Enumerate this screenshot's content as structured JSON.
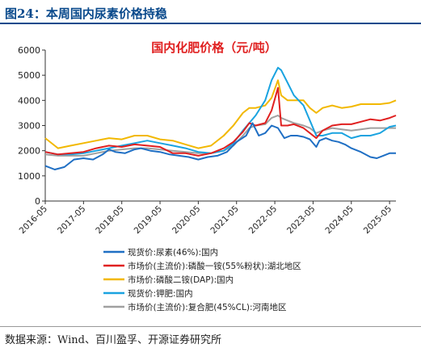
{
  "figure": {
    "title": "图24：本周国内尿素价格持稳",
    "source": "数据来源：Wind、百川盈孚、开源证券研究所"
  },
  "colors": {
    "header": "#0a4a8c"
  },
  "chart_data": {
    "type": "line",
    "title": "国内化肥价格（元/吨）",
    "title_color": "#e02020",
    "ylim": [
      0,
      6000
    ],
    "yticks": [
      0,
      1000,
      2000,
      3000,
      4000,
      5000,
      6000
    ],
    "xlim": [
      "2016-05",
      "2025-07"
    ],
    "xtick_labels": [
      "2016-05",
      "2017-05",
      "2018-05",
      "2019-05",
      "2020-05",
      "2021-05",
      "2022-05",
      "2023-05",
      "2024-05",
      "2025-05"
    ],
    "grid": false,
    "legend_position": "bottom",
    "series": [
      {
        "name": "现货价:尿素(46%):国内",
        "color": "#1f6fc4",
        "points": [
          [
            "2016-05",
            1400
          ],
          [
            "2016-08",
            1250
          ],
          [
            "2016-11",
            1350
          ],
          [
            "2017-02",
            1650
          ],
          [
            "2017-05",
            1700
          ],
          [
            "2017-08",
            1650
          ],
          [
            "2017-11",
            1850
          ],
          [
            "2018-01",
            2050
          ],
          [
            "2018-03",
            1950
          ],
          [
            "2018-06",
            1900
          ],
          [
            "2018-09",
            2050
          ],
          [
            "2018-11",
            2100
          ],
          [
            "2019-02",
            2000
          ],
          [
            "2019-05",
            1950
          ],
          [
            "2019-08",
            1850
          ],
          [
            "2019-11",
            1800
          ],
          [
            "2020-02",
            1750
          ],
          [
            "2020-05",
            1650
          ],
          [
            "2020-08",
            1750
          ],
          [
            "2020-11",
            1800
          ],
          [
            "2021-02",
            1950
          ],
          [
            "2021-05",
            2350
          ],
          [
            "2021-08",
            2600
          ],
          [
            "2021-10",
            3100
          ],
          [
            "2021-12",
            2600
          ],
          [
            "2022-02",
            2700
          ],
          [
            "2022-04",
            3000
          ],
          [
            "2022-06",
            2900
          ],
          [
            "2022-08",
            2500
          ],
          [
            "2022-10",
            2600
          ],
          [
            "2022-12",
            2600
          ],
          [
            "2023-02",
            2550
          ],
          [
            "2023-04",
            2450
          ],
          [
            "2023-06",
            2150
          ],
          [
            "2023-07",
            2400
          ],
          [
            "2023-09",
            2500
          ],
          [
            "2023-11",
            2400
          ],
          [
            "2024-01",
            2350
          ],
          [
            "2024-03",
            2250
          ],
          [
            "2024-05",
            2100
          ],
          [
            "2024-08",
            1950
          ],
          [
            "2024-11",
            1750
          ],
          [
            "2025-01",
            1700
          ],
          [
            "2025-03",
            1800
          ],
          [
            "2025-05",
            1900
          ],
          [
            "2025-07",
            1900
          ]
        ]
      },
      {
        "name": "市场价(主流价):磷酸一铵(55%粉状):湖北地区",
        "color": "#e02020",
        "points": [
          [
            "2016-05",
            1950
          ],
          [
            "2016-09",
            1850
          ],
          [
            "2017-01",
            1900
          ],
          [
            "2017-05",
            1950
          ],
          [
            "2017-09",
            2100
          ],
          [
            "2018-01",
            2200
          ],
          [
            "2018-05",
            2150
          ],
          [
            "2018-09",
            2250
          ],
          [
            "2019-01",
            2200
          ],
          [
            "2019-05",
            2150
          ],
          [
            "2019-09",
            1900
          ],
          [
            "2020-01",
            1900
          ],
          [
            "2020-05",
            1800
          ],
          [
            "2020-09",
            1900
          ],
          [
            "2021-01",
            2100
          ],
          [
            "2021-04",
            2350
          ],
          [
            "2021-07",
            2750
          ],
          [
            "2021-09",
            3100
          ],
          [
            "2021-11",
            3000
          ],
          [
            "2022-02",
            3100
          ],
          [
            "2022-04",
            3600
          ],
          [
            "2022-06",
            4500
          ],
          [
            "2022-07",
            3000
          ],
          [
            "2022-09",
            3000
          ],
          [
            "2022-11",
            3050
          ],
          [
            "2023-02",
            2900
          ],
          [
            "2023-04",
            2700
          ],
          [
            "2023-06",
            2500
          ],
          [
            "2023-08",
            2800
          ],
          [
            "2023-11",
            3000
          ],
          [
            "2024-02",
            3050
          ],
          [
            "2024-05",
            3050
          ],
          [
            "2024-08",
            3150
          ],
          [
            "2024-11",
            3250
          ],
          [
            "2025-02",
            3200
          ],
          [
            "2025-05",
            3300
          ],
          [
            "2025-07",
            3400
          ]
        ]
      },
      {
        "name": "市场价:磷酸二铵(DAP):国内",
        "color": "#f2b800",
        "points": [
          [
            "2016-05",
            2500
          ],
          [
            "2016-09",
            2100
          ],
          [
            "2017-01",
            2200
          ],
          [
            "2017-05",
            2300
          ],
          [
            "2017-09",
            2400
          ],
          [
            "2018-01",
            2500
          ],
          [
            "2018-05",
            2450
          ],
          [
            "2018-09",
            2600
          ],
          [
            "2019-01",
            2600
          ],
          [
            "2019-05",
            2450
          ],
          [
            "2019-09",
            2400
          ],
          [
            "2020-01",
            2250
          ],
          [
            "2020-05",
            2100
          ],
          [
            "2020-09",
            2200
          ],
          [
            "2021-01",
            2600
          ],
          [
            "2021-04",
            3000
          ],
          [
            "2021-07",
            3500
          ],
          [
            "2021-09",
            3700
          ],
          [
            "2021-11",
            3700
          ],
          [
            "2022-02",
            3800
          ],
          [
            "2022-04",
            4100
          ],
          [
            "2022-06",
            4800
          ],
          [
            "2022-07",
            4200
          ],
          [
            "2022-09",
            4000
          ],
          [
            "2022-11",
            4000
          ],
          [
            "2023-02",
            4000
          ],
          [
            "2023-04",
            3700
          ],
          [
            "2023-06",
            3500
          ],
          [
            "2023-08",
            3700
          ],
          [
            "2023-11",
            3800
          ],
          [
            "2024-02",
            3700
          ],
          [
            "2024-05",
            3750
          ],
          [
            "2024-08",
            3850
          ],
          [
            "2024-11",
            3850
          ],
          [
            "2025-02",
            3850
          ],
          [
            "2025-05",
            3900
          ],
          [
            "2025-07",
            4000
          ]
        ]
      },
      {
        "name": "现货价:钾肥:国内",
        "color": "#1aa3e0",
        "points": [
          [
            "2016-05",
            1950
          ],
          [
            "2016-09",
            1850
          ],
          [
            "2017-01",
            1850
          ],
          [
            "2017-05",
            1900
          ],
          [
            "2017-09",
            2000
          ],
          [
            "2018-01",
            2100
          ],
          [
            "2018-05",
            2200
          ],
          [
            "2018-09",
            2300
          ],
          [
            "2019-01",
            2400
          ],
          [
            "2019-05",
            2300
          ],
          [
            "2019-09",
            2200
          ],
          [
            "2020-01",
            2100
          ],
          [
            "2020-05",
            1950
          ],
          [
            "2020-09",
            1900
          ],
          [
            "2021-01",
            2000
          ],
          [
            "2021-04",
            2300
          ],
          [
            "2021-07",
            2800
          ],
          [
            "2021-09",
            3100
          ],
          [
            "2021-11",
            3400
          ],
          [
            "2022-02",
            4000
          ],
          [
            "2022-04",
            4800
          ],
          [
            "2022-06",
            5300
          ],
          [
            "2022-07",
            5200
          ],
          [
            "2022-09",
            4700
          ],
          [
            "2022-11",
            4200
          ],
          [
            "2023-02",
            3800
          ],
          [
            "2023-04",
            3200
          ],
          [
            "2023-06",
            2600
          ],
          [
            "2023-08",
            2600
          ],
          [
            "2023-11",
            2700
          ],
          [
            "2024-02",
            2700
          ],
          [
            "2024-05",
            2500
          ],
          [
            "2024-08",
            2600
          ],
          [
            "2024-11",
            2600
          ],
          [
            "2025-02",
            2700
          ],
          [
            "2025-05",
            2950
          ],
          [
            "2025-07",
            3000
          ]
        ]
      },
      {
        "name": "市场价(主流价):复合肥(45%CL):河南地区",
        "color": "#a0a0a0",
        "points": [
          [
            "2016-05",
            1850
          ],
          [
            "2016-09",
            1800
          ],
          [
            "2017-01",
            1800
          ],
          [
            "2017-05",
            1800
          ],
          [
            "2017-09",
            1900
          ],
          [
            "2018-01",
            2000
          ],
          [
            "2018-05",
            2050
          ],
          [
            "2018-09",
            2100
          ],
          [
            "2019-01",
            2100
          ],
          [
            "2019-05",
            2050
          ],
          [
            "2019-09",
            2000
          ],
          [
            "2020-01",
            1950
          ],
          [
            "2020-05",
            1900
          ],
          [
            "2020-09",
            1900
          ],
          [
            "2021-01",
            2000
          ],
          [
            "2021-04",
            2200
          ],
          [
            "2021-07",
            2600
          ],
          [
            "2021-09",
            2900
          ],
          [
            "2021-11",
            3000
          ],
          [
            "2022-02",
            3050
          ],
          [
            "2022-04",
            3300
          ],
          [
            "2022-06",
            3400
          ],
          [
            "2022-07",
            3300
          ],
          [
            "2022-09",
            3200
          ],
          [
            "2022-11",
            3100
          ],
          [
            "2023-02",
            3000
          ],
          [
            "2023-04",
            2900
          ],
          [
            "2023-06",
            2700
          ],
          [
            "2023-08",
            2800
          ],
          [
            "2023-11",
            2900
          ],
          [
            "2024-02",
            2850
          ],
          [
            "2024-05",
            2800
          ],
          [
            "2024-08",
            2850
          ],
          [
            "2024-11",
            2900
          ],
          [
            "2025-02",
            2900
          ],
          [
            "2025-05",
            2900
          ],
          [
            "2025-07",
            2900
          ]
        ]
      }
    ]
  }
}
